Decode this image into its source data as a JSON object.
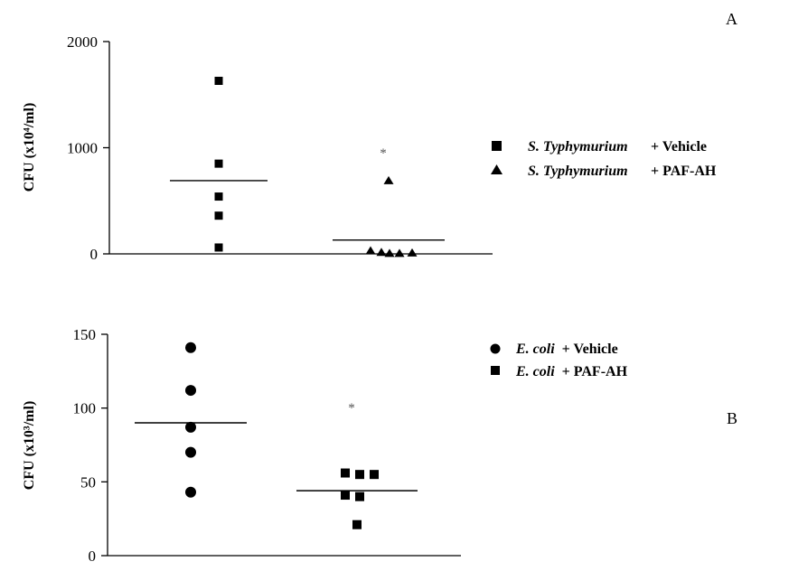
{
  "chart_data": [
    {
      "type": "scatter",
      "panel_label": "A",
      "ylabel": "CFU (x10⁴/ml)",
      "ylim": [
        0,
        2000
      ],
      "yticks": [
        0,
        1000,
        2000
      ],
      "ytick_labels": [
        "0",
        "1000",
        "2000"
      ],
      "groups": [
        {
          "legend_italic": "S. Typhymurium",
          "legend_rest": "+ Vehicle",
          "marker": "square",
          "values": [
            1630,
            850,
            540,
            360,
            60
          ],
          "mean": 690
        },
        {
          "legend_italic": "S. Typhymurium",
          "legend_rest": "+ PAF-AH",
          "marker": "triangle",
          "values": [
            690,
            30,
            15,
            5,
            5,
            10
          ],
          "mean": 130,
          "annotation": "*",
          "annotation_value": 960
        }
      ]
    },
    {
      "type": "scatter",
      "panel_label": "B",
      "ylabel": "CFU (x10³/ml)",
      "ylim": [
        0,
        150
      ],
      "yticks": [
        0,
        50,
        100,
        150
      ],
      "ytick_labels": [
        "0",
        "50",
        "100",
        "150"
      ],
      "groups": [
        {
          "legend_italic": "E. coli",
          "legend_rest": "+ Vehicle",
          "marker": "circle",
          "values": [
            141,
            112,
            87,
            70,
            43
          ],
          "mean": 90
        },
        {
          "legend_italic": "E. coli",
          "legend_rest": "+ PAF-AH",
          "marker": "square",
          "values": [
            56,
            55,
            55,
            41,
            40,
            21
          ],
          "mean": 44,
          "annotation": "*",
          "annotation_value": 101
        }
      ]
    }
  ]
}
